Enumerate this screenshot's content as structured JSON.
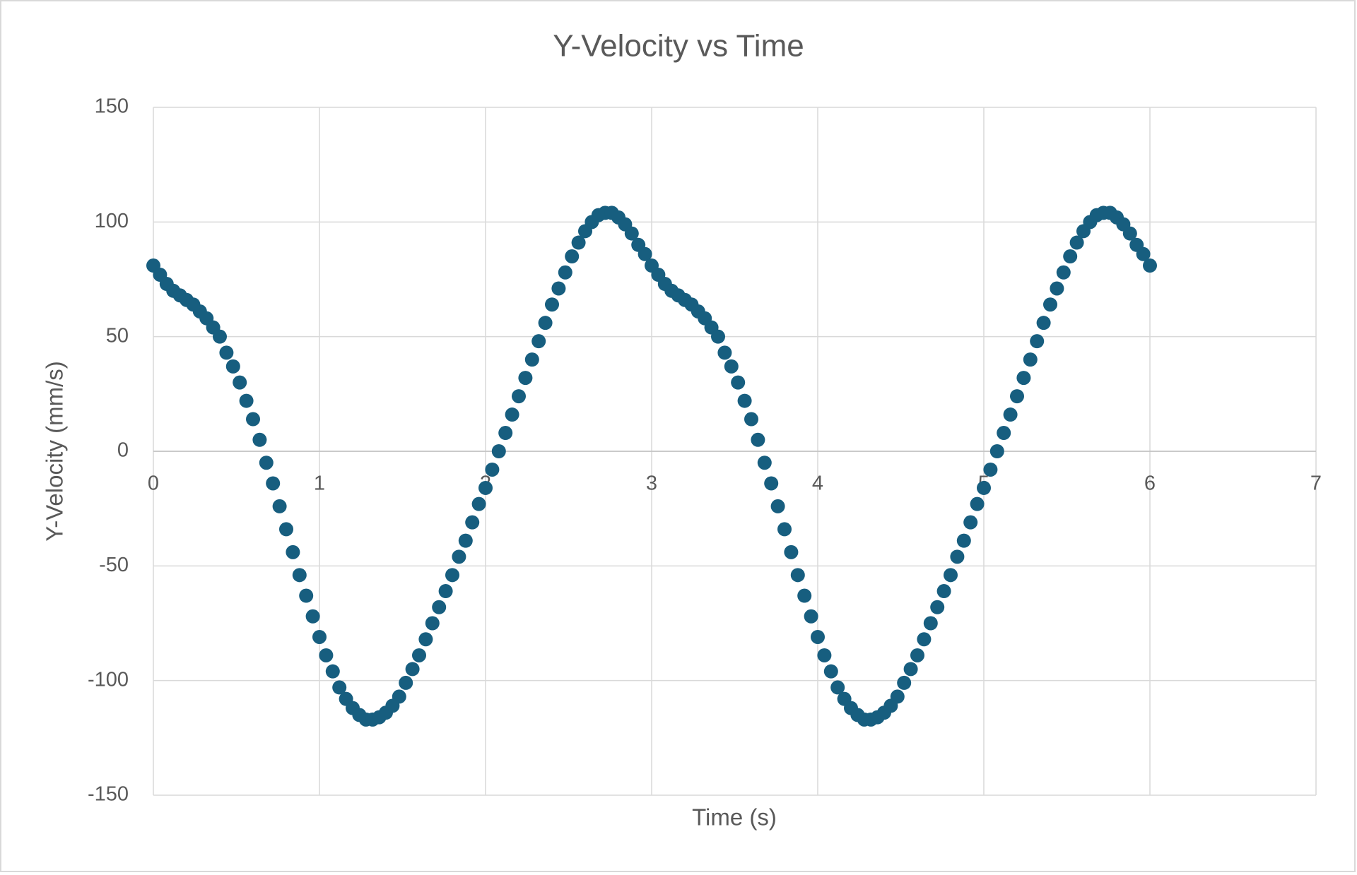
{
  "chart_data": {
    "type": "scatter",
    "title": "Y-Velocity vs Time",
    "xlabel": "Time (s)",
    "ylabel": "Y-Velocity (mm/s)",
    "x": [
      0,
      0.04,
      0.08,
      0.12,
      0.16,
      0.2,
      0.24,
      0.28,
      0.32,
      0.36,
      0.4,
      0.44,
      0.48,
      0.52,
      0.56,
      0.6,
      0.64,
      0.68,
      0.72,
      0.76,
      0.8,
      0.84,
      0.88,
      0.92,
      0.96,
      1,
      1.04,
      1.08,
      1.12,
      1.16,
      1.2,
      1.24,
      1.28,
      1.32,
      1.36,
      1.4,
      1.44,
      1.48,
      1.52,
      1.56,
      1.6,
      1.64,
      1.68,
      1.72,
      1.76,
      1.8,
      1.84,
      1.88,
      1.92,
      1.96,
      2,
      2.04,
      2.08,
      2.12,
      2.16,
      2.2,
      2.24,
      2.28,
      2.32,
      2.36,
      2.4,
      2.44,
      2.48,
      2.52,
      2.56,
      2.6,
      2.64,
      2.68,
      2.72,
      2.76,
      2.8,
      2.84,
      2.88,
      2.92,
      2.96,
      3,
      3.04,
      3.08,
      3.12,
      3.16,
      3.2,
      3.24,
      3.28,
      3.32,
      3.36,
      3.4,
      3.44,
      3.48,
      3.52,
      3.56,
      3.6,
      3.64,
      3.68,
      3.72,
      3.76,
      3.8,
      3.84,
      3.88,
      3.92,
      3.96,
      4,
      4.04,
      4.08,
      4.12,
      4.16,
      4.2,
      4.24,
      4.28,
      4.32,
      4.36,
      4.4,
      4.44,
      4.48,
      4.52,
      4.56,
      4.6,
      4.64,
      4.68,
      4.72,
      4.76,
      4.8,
      4.84,
      4.88,
      4.92,
      4.96,
      5,
      5.04,
      5.08,
      5.12,
      5.16,
      5.2,
      5.24,
      5.28,
      5.32,
      5.36,
      5.4,
      5.44,
      5.48,
      5.52,
      5.56,
      5.6,
      5.64,
      5.68,
      5.72,
      5.76,
      5.8,
      5.84,
      5.88,
      5.92,
      5.96,
      6
    ],
    "series": [
      {
        "name": "Y-Velocity",
        "color": "#175e7f",
        "values": [
          81,
          77,
          73,
          70,
          68,
          66,
          64,
          61,
          58,
          54,
          50,
          43,
          37,
          30,
          22,
          14,
          5,
          -5,
          -14,
          -24,
          -34,
          -44,
          -54,
          -63,
          -72,
          -81,
          -89,
          -96,
          -103,
          -108,
          -112,
          -115,
          -117,
          -117,
          -116,
          -114,
          -111,
          -107,
          -101,
          -95,
          -89,
          -82,
          -75,
          -68,
          -61,
          -54,
          -46,
          -39,
          -31,
          -23,
          -16,
          -8,
          0,
          8,
          16,
          24,
          32,
          40,
          48,
          56,
          64,
          71,
          78,
          85,
          91,
          96,
          100,
          103,
          104,
          104,
          102,
          99,
          95,
          90,
          86,
          81,
          77,
          73,
          70,
          68,
          66,
          64,
          61,
          58,
          54,
          50,
          43,
          37,
          30,
          22,
          14,
          5,
          -5,
          -14,
          -24,
          -34,
          -44,
          -54,
          -63,
          -72,
          -81,
          -89,
          -96,
          -103,
          -108,
          -112,
          -115,
          -117,
          -117,
          -116,
          -114,
          -111,
          -107,
          -101,
          -95,
          -89,
          -82,
          -75,
          -68,
          -61,
          -54,
          -46,
          -39,
          -31,
          -23,
          -16,
          -8,
          0,
          8,
          16,
          24,
          32,
          40,
          48,
          56,
          64,
          71,
          78,
          85,
          91,
          96,
          100,
          103,
          104,
          104,
          102,
          99,
          95,
          90,
          86,
          81
        ]
      }
    ],
    "xlim": [
      0,
      7
    ],
    "xticks": [
      0,
      1,
      2,
      3,
      4,
      5,
      6,
      7
    ],
    "ylim": [
      -150,
      150
    ],
    "yticks": [
      -150,
      -100,
      -50,
      0,
      50,
      100,
      150
    ],
    "grid": true
  }
}
